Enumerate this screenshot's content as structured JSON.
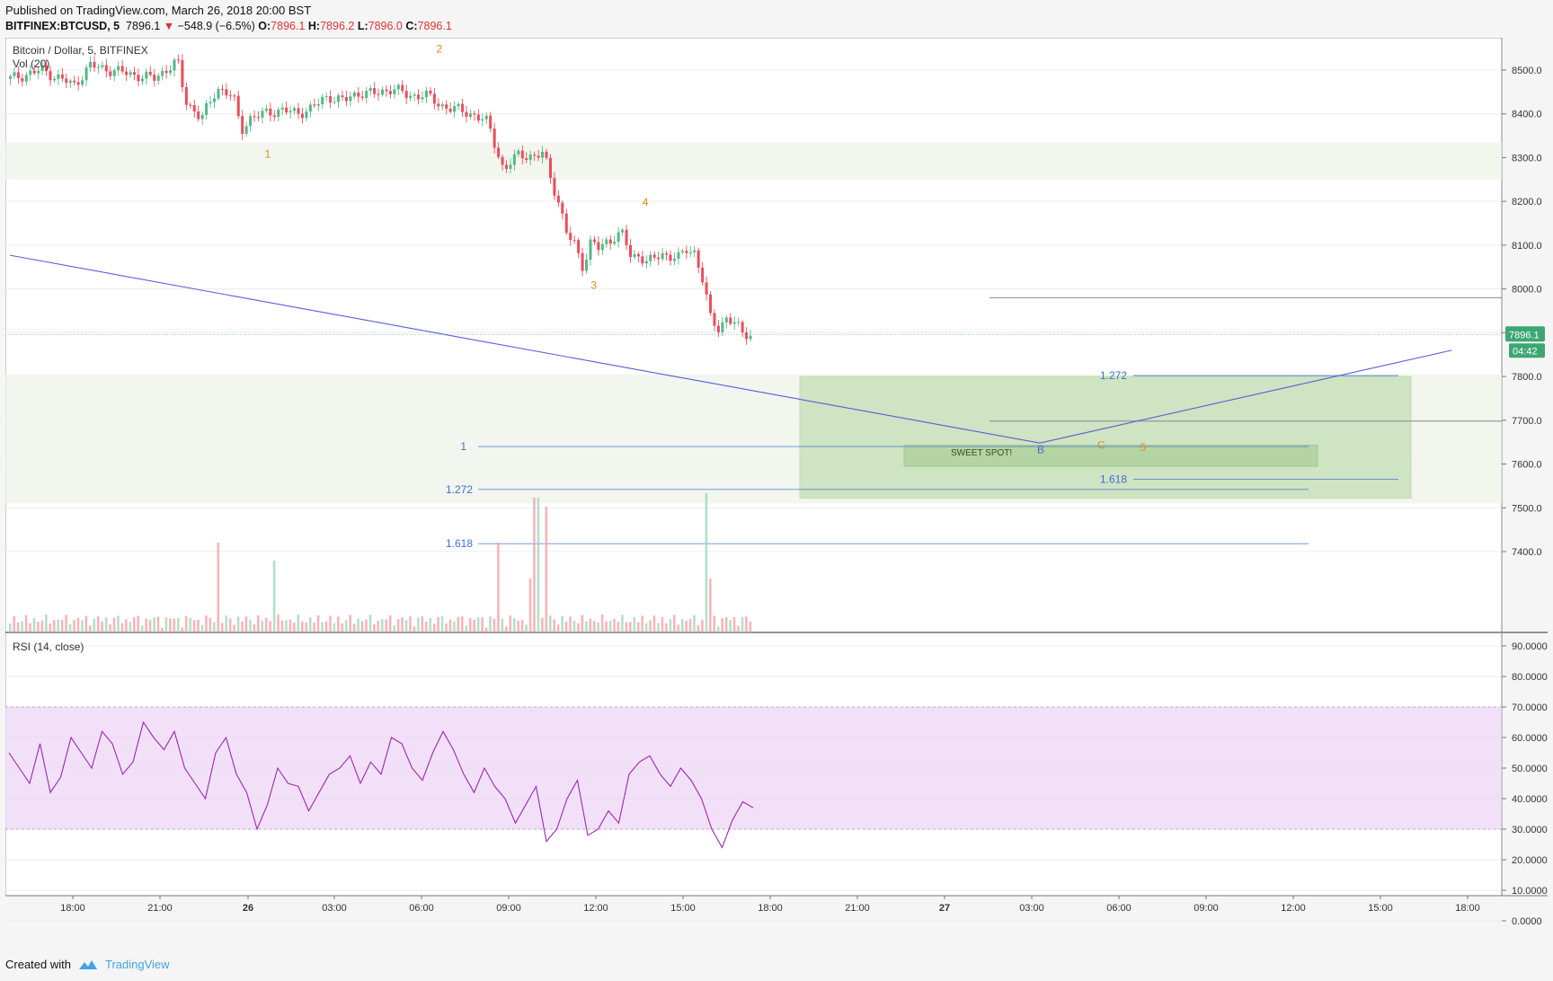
{
  "header": {
    "published": "Published on TradingView.com, March 26, 2018 20:00 BST",
    "symbol": "BITFINEX:BTCUSD, 5",
    "last": "7896.1",
    "change_arrow": "▼",
    "change": "−548.9 (−6.5%)",
    "o_label": "O:",
    "o": "7896.1",
    "h_label": "H:",
    "h": "7896.2",
    "l_label": "L:",
    "l": "7896.0",
    "c_label": "C:",
    "c": "7896.1"
  },
  "legend": {
    "main": "Bitcoin / Dollar, 5, BITFINEX",
    "volume": "Vol (20)",
    "rsi": "RSI (14, close)"
  },
  "footer": {
    "created": "Created with",
    "brand": "TradingView"
  },
  "colors": {
    "up": "#53b987",
    "down": "#eb4d5c",
    "rsi": "#9c27b0",
    "fib": "#3f6ed8",
    "trend": "#5b5bd6",
    "wave": "#e08a1e",
    "zone": "#a5cf8d",
    "rsi_band": "#ecd3f7"
  },
  "chart_data": {
    "type": "candlestick",
    "price_axis": {
      "ticks": [
        "8500.0",
        "8400.0",
        "8300.0",
        "8200.0",
        "8100.0",
        "8000.0",
        "7900.0",
        "7800.0",
        "7700.0",
        "7600.0",
        "7500.0",
        "7400.0"
      ],
      "last_price_label": "7896.1",
      "countdown": "04:42"
    },
    "rsi_axis": {
      "ticks": [
        "90.0000",
        "80.0000",
        "70.0000",
        "60.0000",
        "50.0000",
        "40.0000",
        "30.0000",
        "20.0000",
        "10.0000",
        "0.0000"
      ],
      "upper_band": 70,
      "lower_band": 30
    },
    "time_axis": [
      "18:00",
      "21:00",
      "26",
      "03:00",
      "06:00",
      "09:00",
      "12:00",
      "15:00",
      "18:00",
      "21:00",
      "27",
      "03:00",
      "06:00",
      "09:00",
      "12:00",
      "15:00",
      "18:00"
    ],
    "price_path": [
      [
        0,
        8480
      ],
      [
        4,
        8500
      ],
      [
        8,
        8465
      ],
      [
        10,
        8510
      ],
      [
        18,
        8480
      ],
      [
        21,
        8520
      ],
      [
        22,
        8430
      ],
      [
        24,
        8390
      ],
      [
        25,
        8420
      ],
      [
        26,
        8460
      ],
      [
        28,
        8440
      ],
      [
        29,
        8360
      ],
      [
        30,
        8390
      ],
      [
        34,
        8410
      ],
      [
        36,
        8400
      ],
      [
        38,
        8415
      ],
      [
        40,
        8440
      ],
      [
        42,
        8430
      ],
      [
        44,
        8450
      ],
      [
        46,
        8445
      ],
      [
        48,
        8460
      ],
      [
        50,
        8440
      ],
      [
        52,
        8445
      ],
      [
        54,
        8420
      ],
      [
        56,
        8410
      ],
      [
        58,
        8400
      ],
      [
        60,
        8380
      ],
      [
        62,
        8270
      ],
      [
        64,
        8310
      ],
      [
        66,
        8300
      ],
      [
        67,
        8310
      ],
      [
        68,
        8250
      ],
      [
        69,
        8190
      ],
      [
        70,
        8120
      ],
      [
        71,
        8100
      ],
      [
        72,
        8050
      ],
      [
        73,
        8110
      ],
      [
        74,
        8090
      ],
      [
        75,
        8110
      ],
      [
        76,
        8120
      ],
      [
        77,
        8125
      ],
      [
        78,
        8070
      ],
      [
        79,
        8080
      ],
      [
        80,
        8060
      ],
      [
        82,
        8080
      ],
      [
        84,
        8070
      ],
      [
        85,
        8090
      ],
      [
        86,
        8085
      ],
      [
        87,
        8020
      ],
      [
        88,
        7930
      ],
      [
        89,
        7910
      ],
      [
        90,
        7935
      ],
      [
        91,
        7920
      ],
      [
        92,
        7900
      ],
      [
        93,
        7896
      ]
    ],
    "wave_labels": [
      {
        "label": "1",
        "x": 30,
        "price": 8300
      },
      {
        "label": "2",
        "x": 50,
        "price": 8540
      },
      {
        "label": "3",
        "x": 68,
        "price": 8000
      },
      {
        "label": "4",
        "x": 74,
        "price": 8190
      },
      {
        "label": "B",
        "x": 120,
        "price": 7625
      },
      {
        "label": "C",
        "x": 127,
        "price": 7635
      },
      {
        "label": "5",
        "x": 132,
        "price": 7630
      }
    ],
    "fib_levels": [
      {
        "label": "1",
        "price": 7640
      },
      {
        "label": "1.272",
        "price": 7542
      },
      {
        "label": "1.618",
        "price": 7418
      },
      {
        "label": "1.272",
        "price": 7802
      },
      {
        "label": "1.618",
        "price": 7565
      }
    ],
    "annotations": {
      "sweet_spot": "SWEET SPOT!"
    },
    "supply_zones": [
      [
        8250,
        8335
      ],
      [
        7510,
        7805
      ]
    ],
    "target_zone": [
      7522,
      7800
    ],
    "horizontal_lines": [
      7980,
      7698
    ],
    "trendline": [
      [
        0,
        8077
      ],
      [
        120,
        7648
      ],
      [
        168,
        7860
      ]
    ],
    "rsi": [
      55,
      50,
      45,
      58,
      42,
      47,
      60,
      55,
      50,
      62,
      58,
      48,
      52,
      65,
      60,
      56,
      62,
      50,
      45,
      40,
      55,
      60,
      48,
      42,
      30,
      38,
      50,
      45,
      44,
      36,
      42,
      48,
      50,
      54,
      45,
      52,
      48,
      60,
      58,
      50,
      46,
      55,
      62,
      56,
      48,
      42,
      50,
      44,
      40,
      32,
      38,
      44,
      26,
      30,
      40,
      46,
      28,
      30,
      36,
      32,
      48,
      52,
      54,
      48,
      44,
      50,
      46,
      40,
      30,
      24,
      33,
      39,
      37
    ]
  }
}
